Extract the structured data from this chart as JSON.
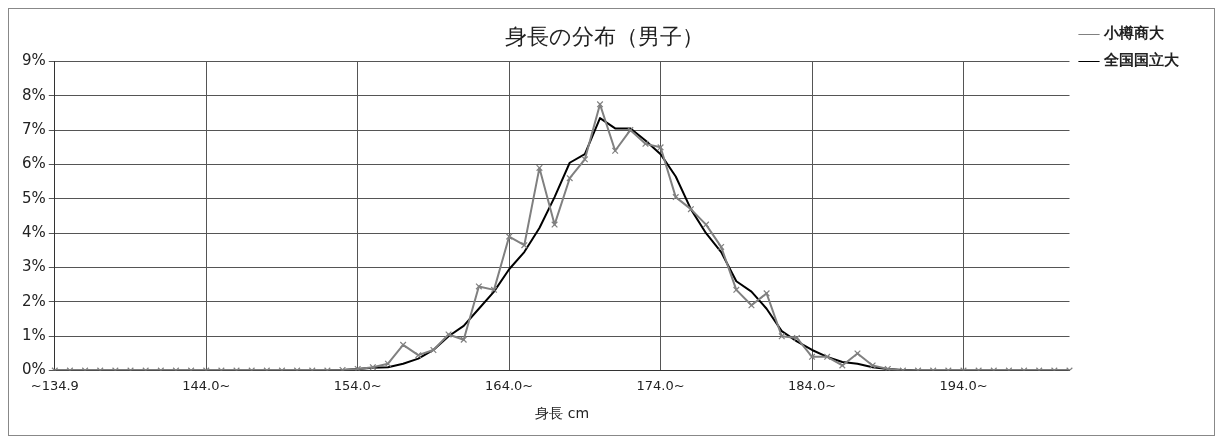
{
  "chart_data": {
    "type": "line",
    "title": "身長の分布（男子）",
    "xlabel": "身長 cm",
    "categories": [
      "~134.9",
      null,
      null,
      null,
      null,
      null,
      null,
      null,
      null,
      null,
      "144.0~",
      null,
      null,
      null,
      null,
      null,
      null,
      null,
      null,
      null,
      "154.0~",
      null,
      null,
      null,
      null,
      null,
      null,
      null,
      null,
      null,
      "164.0~",
      null,
      null,
      null,
      null,
      null,
      null,
      null,
      null,
      null,
      "174.0~",
      null,
      null,
      null,
      null,
      null,
      null,
      null,
      null,
      null,
      "184.0~",
      null,
      null,
      null,
      null,
      null,
      null,
      null,
      null,
      null,
      "194.0~",
      null,
      null,
      null,
      null,
      null,
      null,
      null
    ],
    "series": [
      {
        "name": "小樽商大",
        "color": "#808080",
        "marker": "cross",
        "values": [
          0,
          0,
          0,
          0,
          0,
          0,
          0,
          0,
          0,
          0,
          0,
          0,
          0,
          0,
          0,
          0,
          0,
          0,
          0,
          0.02,
          0.05,
          0.1,
          0.2,
          0.75,
          0.45,
          0.6,
          1.05,
          0.9,
          2.45,
          2.35,
          3.9,
          3.65,
          5.9,
          4.25,
          5.6,
          6.15,
          7.75,
          6.4,
          7.0,
          6.6,
          6.5,
          5.05,
          4.7,
          4.25,
          3.6,
          2.35,
          1.9,
          2.25,
          1.0,
          0.95,
          0.4,
          0.4,
          0.15,
          0.5,
          0.15,
          0.05,
          0,
          0,
          0,
          0,
          0,
          0,
          0,
          0,
          0,
          0,
          0,
          0
        ]
      },
      {
        "name": "全国国立大",
        "color": "#000000",
        "marker": "none",
        "values": [
          0,
          0,
          0,
          0,
          0,
          0,
          0,
          0,
          0,
          0,
          0,
          0,
          0,
          0,
          0,
          0,
          0,
          0,
          0,
          0.02,
          0.05,
          0.08,
          0.1,
          0.2,
          0.35,
          0.6,
          1.0,
          1.3,
          1.8,
          2.3,
          2.95,
          3.45,
          4.15,
          5.05,
          6.05,
          6.3,
          7.35,
          7.05,
          7.05,
          6.7,
          6.3,
          5.65,
          4.7,
          4.0,
          3.45,
          2.6,
          2.3,
          1.8,
          1.15,
          0.85,
          0.6,
          0.4,
          0.25,
          0.2,
          0.1,
          0.05,
          0.02,
          0,
          0,
          0,
          0,
          0,
          0,
          0,
          0,
          0,
          0,
          0
        ]
      }
    ],
    "ylim": [
      0,
      9
    ],
    "yticks": [
      {
        "value": 0,
        "label": "0%"
      },
      {
        "value": 1,
        "label": "1%"
      },
      {
        "value": 2,
        "label": "2%"
      },
      {
        "value": 3,
        "label": "3%"
      },
      {
        "value": 4,
        "label": "4%"
      },
      {
        "value": 5,
        "label": "5%"
      },
      {
        "value": 6,
        "label": "6%"
      },
      {
        "value": 7,
        "label": "7%"
      },
      {
        "value": 8,
        "label": "8%"
      },
      {
        "value": 9,
        "label": "9%"
      }
    ],
    "grid": true,
    "legend": "right",
    "line_style": "solid"
  }
}
